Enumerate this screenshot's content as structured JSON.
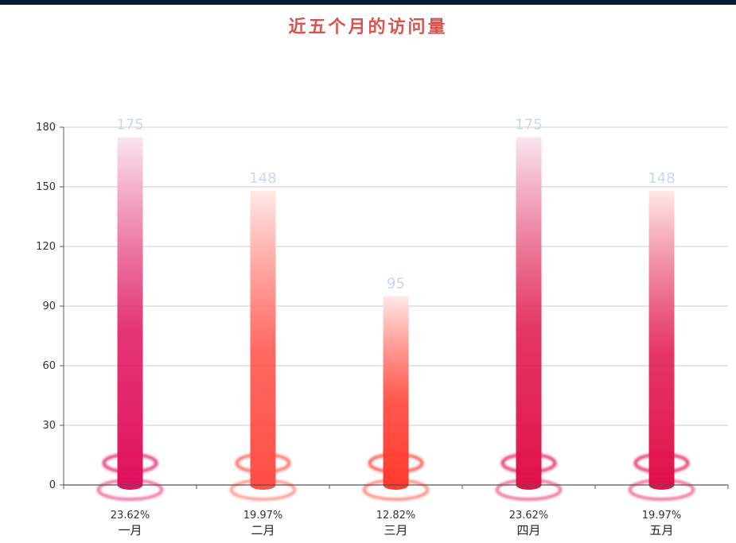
{
  "chart_data": {
    "type": "bar",
    "title": "近五个月的访问量",
    "categories": [
      "一月",
      "二月",
      "三月",
      "四月",
      "五月"
    ],
    "values": [
      175,
      148,
      95,
      175,
      148
    ],
    "percent_labels": [
      "23.62%",
      "19.97%",
      "12.82%",
      "23.62%",
      "19.97%"
    ],
    "ylim": [
      0,
      180
    ],
    "yticks": [
      0,
      30,
      60,
      90,
      120,
      150,
      180
    ],
    "grid": true,
    "xlabel": "",
    "ylabel": ""
  },
  "colors": {
    "title": "#d9534f",
    "bar_palette_top": [
      "#f9e6ef",
      "#ffe9e7",
      "#ffe9e7",
      "#f9e6ef",
      "#ffe9e7"
    ],
    "bar_palette_bottom": [
      "#e0135f",
      "#ff4f46",
      "#ff3b30",
      "#e0134a",
      "#e0134a"
    ],
    "grid": "#cccccc",
    "axis": "#555555"
  }
}
